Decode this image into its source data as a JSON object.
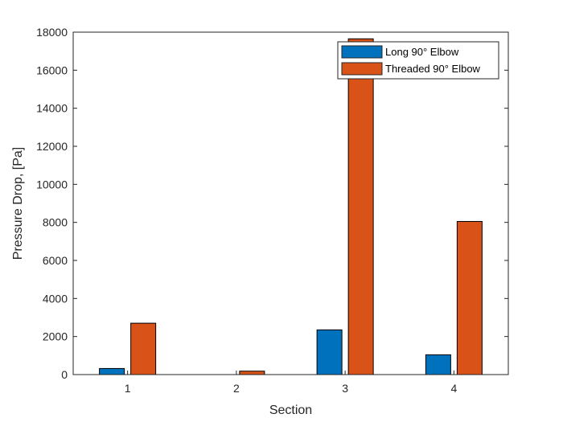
{
  "chart_data": {
    "type": "bar",
    "categories": [
      "1",
      "2",
      "3",
      "4"
    ],
    "series": [
      {
        "name": "Long 90° Elbow",
        "color": "#0072BD",
        "values": [
          320,
          0,
          2350,
          1040
        ]
      },
      {
        "name": "Threaded 90° Elbow",
        "color": "#D95319",
        "values": [
          2700,
          180,
          17650,
          8050
        ]
      }
    ],
    "title": "",
    "xlabel": "Section",
    "ylabel": "Pressure Drop, [Pa]",
    "ylim": [
      0,
      18000
    ],
    "yticks": [
      0,
      2000,
      4000,
      6000,
      8000,
      10000,
      12000,
      14000,
      16000,
      18000
    ],
    "grid": false,
    "legend_position": "top-right"
  }
}
